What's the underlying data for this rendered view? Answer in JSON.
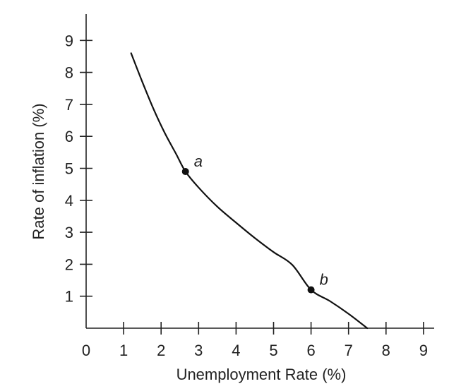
{
  "chart_data": {
    "type": "line",
    "title": "",
    "xlabel": "Unemployment Rate (%)",
    "ylabel": "Rate of inflation (%)",
    "xlim": [
      0,
      9.2
    ],
    "ylim": [
      0,
      9.8
    ],
    "x_ticks": [
      "0",
      "1",
      "2",
      "3",
      "4",
      "5",
      "6",
      "7",
      "8",
      "9"
    ],
    "y_ticks": [
      "1",
      "2",
      "3",
      "4",
      "5",
      "6",
      "7",
      "8",
      "9"
    ],
    "grid": false,
    "series": [
      {
        "color": "#111111",
        "x": [
          1.2,
          1.5,
          1.8,
          2.1,
          2.4,
          2.65,
          3.0,
          3.5,
          4.0,
          4.5,
          5.0,
          5.5,
          6.0,
          6.5,
          7.0,
          7.5
        ],
        "y": [
          8.6,
          7.7,
          6.85,
          6.1,
          5.45,
          4.9,
          4.4,
          3.8,
          3.3,
          2.82,
          2.38,
          1.98,
          1.2,
          0.85,
          0.45,
          0.0
        ]
      }
    ],
    "points": [
      {
        "label": "a",
        "x": 2.65,
        "y": 4.9
      },
      {
        "label": "b",
        "x": 6.0,
        "y": 1.2
      }
    ]
  }
}
